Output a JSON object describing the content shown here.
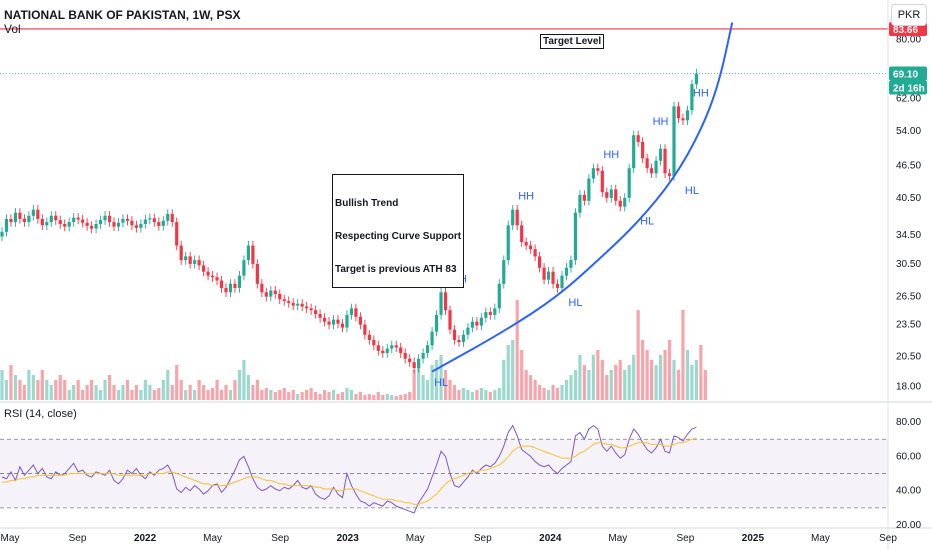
{
  "header": {
    "title": "NATIONAL BANK OF PAKISTAN, 1W, PSX",
    "volume_label": "Vol",
    "currency_button": "PKR",
    "rsi_label": "RSI (14, close)"
  },
  "annotations": {
    "target_label": "Target Level",
    "note_lines": [
      "Bullish Trend",
      "Respecting Curve Support",
      "Target is previous ATH 83"
    ]
  },
  "chart_data": [
    {
      "type": "candlestick",
      "title": "NATIONAL BANK OF PAKISTAN, 1W, PSX",
      "ylim": [
        17,
        84
      ],
      "y_scale": "log",
      "y_ticks": [
        "80.00",
        "62.00",
        "54.00",
        "46.50",
        "40.50",
        "34.50",
        "30.50",
        "26.50",
        "23.50",
        "20.50",
        "18.00"
      ],
      "x_ticks": [
        "May",
        "Sep",
        "2022",
        "May",
        "Sep",
        "2023",
        "May",
        "Sep",
        "2024",
        "May",
        "Sep",
        "2025",
        "May",
        "Sep"
      ],
      "price_tags": [
        {
          "value": "83.66",
          "color": "#f23645"
        },
        {
          "value": "69.10",
          "color": "#22ab94"
        },
        {
          "value": "2d 16h",
          "color": "#22ab94"
        }
      ],
      "target_level": 83.66,
      "last_price": 69.1,
      "close_series": [
        35,
        37,
        36.5,
        38,
        37,
        36.5,
        37.5,
        38.5,
        37,
        36,
        36.5,
        37.5,
        36.8,
        36.2,
        35.8,
        36.5,
        37.2,
        36.9,
        36.4,
        35.9,
        35.5,
        36.2,
        36.8,
        37.5,
        36.5,
        35.8,
        36.4,
        37.0,
        36.7,
        36.0,
        35.6,
        36.2,
        36.9,
        37.1,
        36.5,
        35.9,
        36.7,
        37.8,
        36.5,
        33,
        31,
        31.5,
        30.5,
        31,
        30.3,
        29.5,
        29,
        28.8,
        28.4,
        27.5,
        27,
        28,
        27.5,
        29,
        31,
        33,
        30.5,
        28,
        27,
        26.5,
        27.2,
        26.8,
        26.2,
        26,
        25.8,
        25.5,
        25.7,
        25.4,
        25.2,
        25,
        24.6,
        24.2,
        23.8,
        23.5,
        24,
        23.6,
        23.2,
        24.5,
        25.2,
        24.3,
        23.5,
        22.5,
        22,
        21.5,
        21,
        20.8,
        21.2,
        21.5,
        21.3,
        20.8,
        20.3,
        20,
        19.5,
        20.3,
        20.8,
        21.5,
        22.8,
        24.5,
        27,
        25,
        23,
        22,
        21.8,
        22.5,
        23.2,
        23.8,
        23.4,
        24.2,
        24.8,
        24.5,
        25.2,
        28,
        31,
        36,
        38.5,
        36,
        33.5,
        33,
        32.5,
        31.5,
        30,
        28.5,
        29.5,
        28,
        27.5,
        29,
        30,
        31,
        38,
        41,
        40,
        44,
        46,
        45.5,
        41.5,
        40.5,
        42,
        40,
        39,
        40.5,
        46,
        53,
        51.5,
        48,
        46,
        45,
        47.5,
        50,
        45,
        44.5,
        60,
        57,
        56.5,
        59,
        66,
        69.1
      ],
      "volume_relative": [
        0.3,
        0.2,
        0.35,
        0.25,
        0.2,
        0.15,
        0.3,
        0.25,
        0.2,
        0.3,
        0.2,
        0.15,
        0.2,
        0.25,
        0.2,
        0.1,
        0.15,
        0.2,
        0.1,
        0.15,
        0.2,
        0.15,
        0.1,
        0.2,
        0.25,
        0.15,
        0.1,
        0.15,
        0.2,
        0.1,
        0.15,
        0.1,
        0.2,
        0.15,
        0.1,
        0.12,
        0.2,
        0.3,
        0.15,
        0.35,
        0.2,
        0.1,
        0.15,
        0.1,
        0.2,
        0.15,
        0.1,
        0.12,
        0.2,
        0.1,
        0.15,
        0.1,
        0.2,
        0.3,
        0.4,
        0.25,
        0.15,
        0.2,
        0.1,
        0.12,
        0.1,
        0.08,
        0.1,
        0.12,
        0.08,
        0.1,
        0.06,
        0.08,
        0.1,
        0.12,
        0.08,
        0.06,
        0.1,
        0.08,
        0.1,
        0.06,
        0.08,
        0.12,
        0.1,
        0.06,
        0.08,
        0.05,
        0.06,
        0.05,
        0.08,
        0.05,
        0.06,
        0.05,
        0.04,
        0.05,
        0.06,
        0.08,
        0.3,
        0.35,
        0.25,
        0.2,
        0.35,
        0.4,
        0.45,
        0.3,
        0.2,
        0.15,
        0.1,
        0.12,
        0.1,
        0.08,
        0.1,
        0.12,
        0.1,
        0.08,
        0.1,
        0.12,
        0.4,
        0.55,
        0.6,
        1.0,
        0.5,
        0.3,
        0.25,
        0.2,
        0.15,
        0.12,
        0.1,
        0.15,
        0.12,
        0.15,
        0.2,
        0.25,
        0.3,
        0.45,
        0.35,
        0.3,
        0.45,
        0.5,
        0.4,
        0.25,
        0.3,
        0.35,
        0.4,
        0.3,
        0.35,
        0.45,
        0.9,
        0.6,
        0.5,
        0.4,
        0.35,
        0.45,
        0.5,
        0.6,
        0.4,
        0.3,
        0.9,
        0.5,
        0.35,
        0.4,
        0.55,
        0.3
      ],
      "swing_labels": [
        {
          "label": "HL",
          "bar": 98,
          "price": 19.5,
          "pos": "below"
        },
        {
          "label": "HH",
          "bar": 102,
          "price": 27.0,
          "pos": "above"
        },
        {
          "label": "HH",
          "bar": 117,
          "price": 38.5,
          "pos": "above"
        },
        {
          "label": "HL",
          "bar": 128,
          "price": 27.5,
          "pos": "below"
        },
        {
          "label": "HH",
          "bar": 136,
          "price": 46.0,
          "pos": "above"
        },
        {
          "label": "HL",
          "bar": 144,
          "price": 39.0,
          "pos": "below"
        },
        {
          "label": "HH",
          "bar": 147,
          "price": 53.0,
          "pos": "above"
        },
        {
          "label": "HL",
          "bar": 154,
          "price": 44.5,
          "pos": "below"
        },
        {
          "label": "HH",
          "bar": 156,
          "price": 60.0,
          "pos": "above"
        }
      ],
      "curve_support": [
        [
          96,
          19.2
        ],
        [
          112,
          22.8
        ],
        [
          124,
          26.5
        ],
        [
          134,
          31.5
        ],
        [
          142,
          36.5
        ],
        [
          150,
          44.0
        ],
        [
          156,
          54.0
        ],
        [
          160,
          66.0
        ],
        [
          163,
          86.0
        ]
      ]
    },
    {
      "type": "line",
      "title": "RSI (14, close)",
      "ylim": [
        20,
        90
      ],
      "y_ticks": [
        "80.00",
        "60.00",
        "40.00",
        "20.00"
      ],
      "band": [
        30,
        70
      ],
      "series": [
        {
          "values": [
            48,
            47,
            51,
            46,
            54,
            49,
            52,
            55,
            50,
            53,
            48,
            47,
            51,
            49,
            50,
            53,
            56,
            51,
            52,
            49,
            48,
            51,
            50,
            49,
            52,
            46,
            44,
            47,
            52,
            50,
            53,
            49,
            47,
            51,
            49,
            52,
            53,
            55,
            50,
            41,
            39,
            42,
            40,
            43,
            41,
            38,
            40,
            43,
            44,
            39,
            42,
            47,
            52,
            58,
            60,
            54,
            47,
            42,
            40,
            41,
            43,
            41,
            40,
            42,
            41,
            43,
            46,
            42,
            41,
            43,
            38,
            36,
            35,
            37,
            42,
            38,
            36,
            50,
            43,
            38,
            34,
            33,
            31,
            33,
            32,
            31,
            34,
            33,
            31,
            30,
            29,
            28,
            27,
            33,
            37,
            41,
            48,
            55,
            63,
            60,
            50,
            43,
            42,
            45,
            48,
            52,
            50,
            53,
            55,
            54,
            56,
            60,
            66,
            74,
            78,
            72,
            64,
            62,
            60,
            57,
            55,
            54,
            55,
            52,
            50,
            53,
            55,
            57,
            72,
            74,
            70,
            76,
            78,
            76,
            66,
            63,
            66,
            62,
            59,
            61,
            70,
            76,
            73,
            68,
            64,
            62,
            65,
            70,
            63,
            62,
            72,
            71,
            69,
            73,
            76,
            77
          ]
        },
        {
          "values": [
            45,
            45,
            46,
            46,
            47,
            47,
            48,
            48,
            49,
            49,
            49,
            49,
            49,
            49,
            49,
            50,
            50,
            50,
            50,
            50,
            50,
            50,
            50,
            50,
            50,
            50,
            49,
            49,
            49,
            49,
            49,
            49,
            49,
            50,
            50,
            50,
            50,
            51,
            51,
            50,
            49,
            48,
            47,
            46,
            45,
            44,
            44,
            43,
            43,
            43,
            43,
            44,
            45,
            46,
            47,
            48,
            48,
            48,
            47,
            46,
            46,
            45,
            44,
            44,
            43,
            43,
            43,
            43,
            43,
            43,
            42,
            42,
            41,
            41,
            41,
            40,
            40,
            41,
            41,
            41,
            40,
            39,
            38,
            37,
            36,
            35,
            35,
            35,
            34,
            34,
            33,
            33,
            32,
            32,
            33,
            34,
            36,
            38,
            41,
            44,
            46,
            47,
            48,
            49,
            50,
            51,
            51,
            52,
            52,
            53,
            54,
            55,
            57,
            60,
            63,
            65,
            66,
            66,
            66,
            65,
            64,
            63,
            62,
            61,
            60,
            59,
            59,
            59,
            60,
            62,
            63,
            65,
            67,
            68,
            68,
            67,
            67,
            66,
            65,
            65,
            66,
            67,
            68,
            68,
            68,
            67,
            67,
            67,
            66,
            66,
            67,
            68,
            68,
            69,
            70,
            71
          ]
        }
      ]
    }
  ]
}
